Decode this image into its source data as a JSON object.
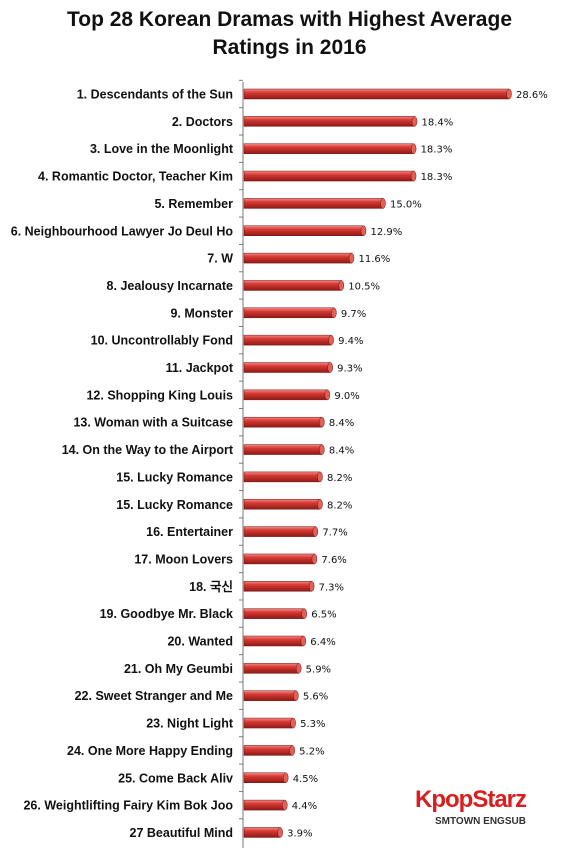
{
  "chart_data": {
    "type": "bar",
    "orientation": "horizontal",
    "title": "Top 28 Korean Dramas with Highest Average Ratings in 2016",
    "title_lines": [
      "Top 28 Korean Dramas with Highest Average",
      "Ratings in 2016"
    ],
    "categories": [
      "1. Descendants of the Sun",
      "2. Doctors",
      "3. Love in the Moonlight",
      "4. Romantic Doctor, Teacher Kim",
      "5. Remember",
      "6. Neighbourhood Lawyer Jo Deul Ho",
      "7. W",
      "8. Jealousy Incarnate",
      "9. Monster",
      "10. Uncontrollably Fond",
      "11. Jackpot",
      "12. Shopping King Louis",
      "13. Woman with a Suitcase",
      "14. On the Way to the Airport",
      "15. Lucky Romance",
      "15. Lucky Romance",
      "16. Entertainer",
      "17. Moon Lovers",
      "18. 국신",
      "19. Goodbye Mr. Black",
      "20. Wanted",
      "21. Oh My Geumbi",
      "22. Sweet Stranger and Me",
      "23. Night Light",
      "24. One More Happy Ending",
      "25. Come Back Aliv",
      "26. Weightlifting Fairy Kim Bok Joo",
      "27  Beautiful Mind"
    ],
    "values": [
      28.6,
      18.4,
      18.3,
      18.3,
      15.0,
      12.9,
      11.6,
      10.5,
      9.7,
      9.4,
      9.3,
      9.0,
      8.4,
      8.4,
      8.2,
      8.2,
      7.7,
      7.6,
      7.3,
      6.5,
      6.4,
      5.9,
      5.6,
      5.3,
      5.2,
      4.5,
      4.4,
      3.9
    ],
    "value_labels": [
      "28.6%",
      "18.4%",
      "18.3%",
      "18.3%",
      "15.0%",
      "12.9%",
      "11.6%",
      "10.5%",
      "9.7%",
      "9.4%",
      "9.3%",
      "9.0%",
      "8.4%",
      "8.4%",
      "8.2%",
      "8.2%",
      "7.7%",
      "7.6%",
      "7.3%",
      "6.5%",
      "6.4%",
      "5.9%",
      "5.6%",
      "5.3%",
      "5.2%",
      "4.5%",
      "4.4%",
      "3.9%"
    ],
    "bar_color": "#c8302c",
    "grid": false,
    "legend": "none"
  },
  "watermark": {
    "brand": "KpopStarz",
    "sub": "SMTOWN ENGSUB"
  }
}
